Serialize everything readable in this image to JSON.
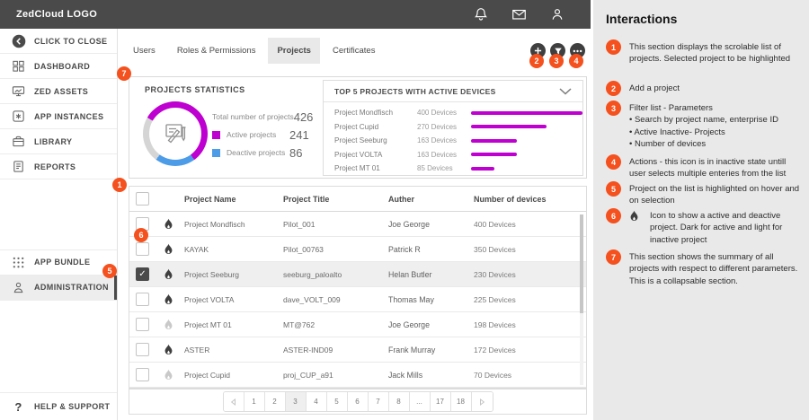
{
  "colors": {
    "accent_orange": "#F4511E",
    "magenta": "#BE00D0",
    "blue": "#4D9CE8",
    "topbar_gray": "#4A4A4A",
    "panel_gray": "#E9E9E9"
  },
  "topbar": {
    "logo": "ZedCloud LOGO",
    "icons": [
      "bell",
      "mail",
      "user"
    ]
  },
  "sidebar": {
    "items": [
      {
        "label": "CLICK TO CLOSE",
        "icon": "back"
      },
      {
        "label": "DASHBOARD",
        "icon": "dashboard"
      },
      {
        "label": "ZED ASSETS",
        "icon": "monitor"
      },
      {
        "label": "APP INSTANCES",
        "icon": "app"
      },
      {
        "label": "LIBRARY",
        "icon": "library"
      },
      {
        "label": "REPORTS",
        "icon": "reports"
      }
    ],
    "group2": [
      {
        "label": "APP BUNDLE",
        "icon": "bundle"
      },
      {
        "label": "ADMINISTRATION",
        "icon": "admin",
        "selected": true
      }
    ],
    "help": {
      "label": "HELP & SUPPORT",
      "icon": "help"
    }
  },
  "tabs": [
    {
      "label": "Users"
    },
    {
      "label": "Roles & Permissions"
    },
    {
      "label": "Projects",
      "active": true
    },
    {
      "label": "Certificates"
    }
  ],
  "actions": [
    {
      "icon": "plus",
      "name": "add-project",
      "badge": "2"
    },
    {
      "icon": "filter",
      "name": "filter-list",
      "badge": "3"
    },
    {
      "icon": "ellipsis",
      "name": "actions-menu",
      "badge": "4"
    }
  ],
  "chart_data": [
    {
      "type": "pie",
      "title": "PROJECTS STATISTICS",
      "total_label": "Total number of projects",
      "total": 426,
      "labels": [
        "Active projects",
        "Deactive projects"
      ],
      "values": [
        241,
        86
      ],
      "colors": [
        "#BE00D0",
        "#4D9CE8"
      ],
      "rest_color": "#D5D5D5"
    },
    {
      "type": "bar",
      "title": "TOP 5 PROJECTS WITH ACTIVE DEVICES",
      "categories": [
        "Project Mondfisch",
        "Project Cupid",
        "Project Seeburg",
        "Project VOLTA",
        "Project MT 01"
      ],
      "values": [
        400,
        270,
        163,
        163,
        85
      ],
      "value_suffix": " Devices",
      "xmax": 400,
      "bar_color": "#BE00D0"
    }
  ],
  "table": {
    "headers": [
      "Project Name",
      "Project Title",
      "Auther",
      "Number of devices"
    ],
    "rows": [
      {
        "name": "Project Mondfisch",
        "title": "Pilot_001",
        "author": "Joe George",
        "devices": "400 Devices",
        "active": true,
        "checked": false,
        "selected": false
      },
      {
        "name": "KAYAK",
        "title": "Pilot_00763",
        "author": "Patrick R",
        "devices": "350 Devices",
        "active": true,
        "checked": false,
        "selected": false
      },
      {
        "name": "Project Seeburg",
        "title": "seeburg_paloalto",
        "author": "Helan Butler",
        "devices": "230 Devices",
        "active": true,
        "checked": true,
        "selected": true
      },
      {
        "name": "Project VOLTA",
        "title": "dave_VOLT_009",
        "author": "Thomas May",
        "devices": "225 Devices",
        "active": true,
        "checked": false,
        "selected": false
      },
      {
        "name": "Project MT 01",
        "title": "MT@762",
        "author": "Joe George",
        "devices": "198 Devices",
        "active": false,
        "checked": false,
        "selected": false
      },
      {
        "name": "ASTER",
        "title": "ASTER-IND09",
        "author": "Frank Murray",
        "devices": "172 Devices",
        "active": true,
        "checked": false,
        "selected": false
      },
      {
        "name": "Project Cupid",
        "title": "proj_CUP_a91",
        "author": "Jack  Mills",
        "devices": "70 Devices",
        "active": false,
        "checked": false,
        "selected": false
      }
    ]
  },
  "pagination": {
    "pages": [
      "1",
      "2",
      "3",
      "4",
      "5",
      "6",
      "7",
      "8",
      "...",
      "17",
      "18"
    ],
    "current": "3"
  },
  "annotations": {
    "title": "Interactions",
    "items": [
      {
        "num": "1",
        "text": "This section displays the scrolable list  of projects. Selected project to be highlighted"
      },
      {
        "num": "2",
        "text": "Add a project"
      },
      {
        "num": "3",
        "lines": [
          "Filter list -  Parameters",
          "• Search by project name, enterprise ID",
          "• Active Inactive- Projects",
          "• Number of devices"
        ]
      },
      {
        "num": "4",
        "text": "Actions  - this icon is in inactive state untill user selects multiple enteries from the list"
      },
      {
        "num": "5",
        "text": "Project on the list is highlighted on hover and on selection"
      },
      {
        "num": "6",
        "icon": "flame",
        "text": "Icon to show a active and deactive project.  Dark for active  and light for inactive project"
      },
      {
        "num": "7",
        "text": "This section shows  the summary of all projects with respect to different parameters. This is a collapsable section."
      }
    ]
  },
  "callout_markers": [
    "1",
    "5",
    "6",
    "7"
  ]
}
